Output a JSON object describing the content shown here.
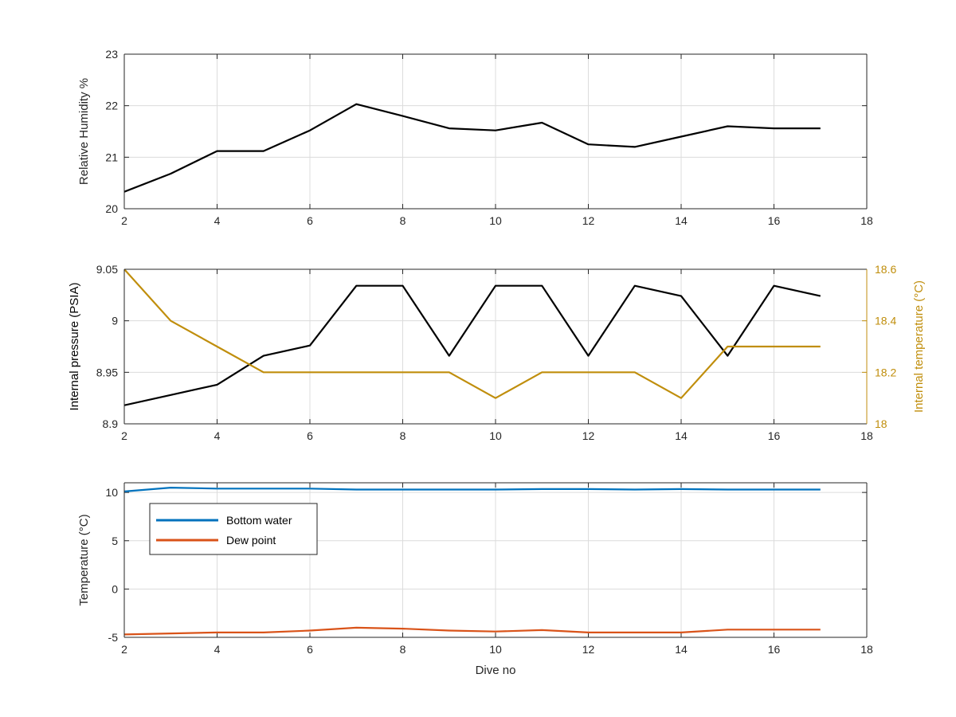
{
  "colors": {
    "axis": "#262626",
    "grid": "#dcdcdc",
    "rh_line": "#000000",
    "pressure_line": "#000000",
    "internal_temp_line": "#C08E0C",
    "right_axis": "#C08E0C",
    "bottom_water": "#0072BD",
    "dew_point": "#D95319"
  },
  "chart_data": [
    {
      "type": "line",
      "ylabel": "Relative Humidity %",
      "xlim": [
        2,
        18
      ],
      "ylim": [
        20,
        23
      ],
      "xticks": [
        "2",
        "4",
        "6",
        "8",
        "10",
        "12",
        "14",
        "16",
        "18"
      ],
      "yticks": [
        "20",
        "21",
        "22",
        "23"
      ],
      "grid": true,
      "series": [
        {
          "x": [
            2,
            3,
            4,
            5,
            6,
            7,
            8,
            9,
            10,
            11,
            12,
            13,
            14,
            15,
            16,
            17
          ],
          "y": [
            20.33,
            20.68,
            21.12,
            21.12,
            21.52,
            22.03,
            21.8,
            21.56,
            21.52,
            21.67,
            21.25,
            21.2,
            21.4,
            21.6,
            21.56,
            21.56
          ]
        }
      ]
    },
    {
      "type": "line",
      "ylabel": "Internal pressure (PSIA)",
      "ylabel_right": "Internal temperature (°C)",
      "xlim": [
        2,
        18
      ],
      "ylim": [
        8.9,
        9.05
      ],
      "ylim_right": [
        18,
        18.6
      ],
      "xticks": [
        "2",
        "4",
        "6",
        "8",
        "10",
        "12",
        "14",
        "16",
        "18"
      ],
      "yticks": [
        "8.9",
        "8.95",
        "9",
        "9.05"
      ],
      "yticks_right": [
        "18",
        "18.2",
        "18.4",
        "18.6"
      ],
      "grid": true,
      "series": [
        {
          "axis": "left",
          "x": [
            2,
            3,
            4,
            5,
            6,
            7,
            8,
            9,
            10,
            11,
            12,
            13,
            14,
            15,
            16,
            17
          ],
          "y": [
            8.918,
            8.928,
            8.938,
            8.966,
            8.976,
            9.034,
            9.034,
            8.966,
            9.034,
            9.034,
            8.966,
            9.034,
            9.024,
            8.966,
            9.034,
            9.024
          ]
        },
        {
          "axis": "right",
          "x": [
            2,
            3,
            4,
            5,
            6,
            7,
            8,
            9,
            10,
            11,
            12,
            13,
            14,
            15,
            16,
            17
          ],
          "y": [
            18.6,
            18.4,
            18.3,
            18.2,
            18.2,
            18.2,
            18.2,
            18.2,
            18.1,
            18.2,
            18.2,
            18.2,
            18.1,
            18.3,
            18.3,
            18.3
          ]
        }
      ]
    },
    {
      "type": "line",
      "xlabel": "Dive no",
      "ylabel": "Temperature (°C)",
      "xlim": [
        2,
        18
      ],
      "ylim": [
        -5,
        11
      ],
      "xticks": [
        "2",
        "4",
        "6",
        "8",
        "10",
        "12",
        "14",
        "16",
        "18"
      ],
      "yticks": [
        "-5",
        "0",
        "5",
        "10"
      ],
      "ytick_values": [
        -5,
        0,
        5,
        10
      ],
      "grid": true,
      "legend_position": "top-left",
      "series": [
        {
          "name": "Bottom water",
          "x": [
            2,
            2.5,
            3,
            4,
            5,
            6,
            7,
            8,
            9,
            10,
            11,
            12,
            13,
            14,
            15,
            16,
            17
          ],
          "y": [
            10.1,
            10.3,
            10.5,
            10.4,
            10.4,
            10.4,
            10.3,
            10.3,
            10.3,
            10.3,
            10.35,
            10.35,
            10.3,
            10.35,
            10.3,
            10.3,
            10.3
          ]
        },
        {
          "name": "Dew point",
          "x": [
            2,
            3,
            4,
            5,
            6,
            7,
            8,
            9,
            10,
            11,
            12,
            13,
            14,
            15,
            16,
            17
          ],
          "y": [
            -4.7,
            -4.6,
            -4.5,
            -4.5,
            -4.3,
            -4.0,
            -4.1,
            -4.3,
            -4.4,
            -4.25,
            -4.5,
            -4.5,
            -4.5,
            -4.2,
            -4.2,
            -4.2
          ]
        }
      ]
    }
  ]
}
